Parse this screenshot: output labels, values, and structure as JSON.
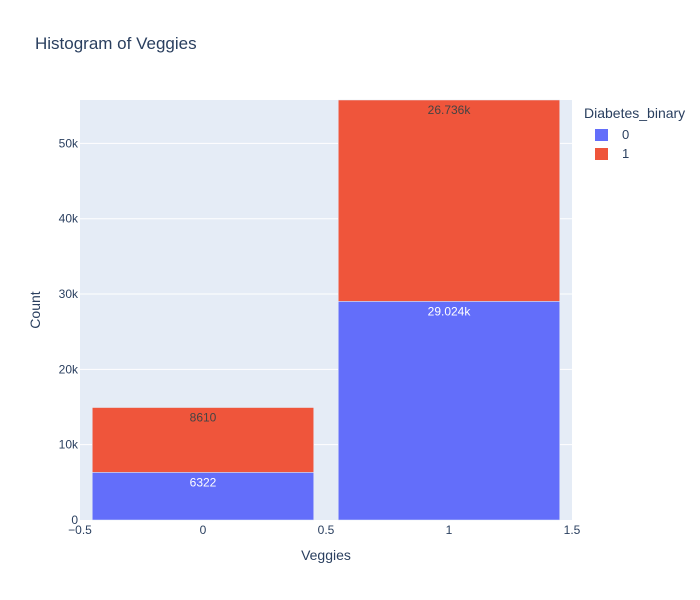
{
  "chart_data": {
    "type": "bar",
    "title": "Histogram of Veggies",
    "xlabel": "Veggies",
    "ylabel": "Count",
    "categories": [
      "0",
      "1"
    ],
    "x_values": [
      0,
      1
    ],
    "xlim": [
      -0.5,
      1.5
    ],
    "ylim": [
      0,
      55760
    ],
    "barmode": "stack",
    "x_ticks": [
      "−0.5",
      "0",
      "0.5",
      "1",
      "1.5"
    ],
    "x_tick_values": [
      -0.5,
      0,
      0.5,
      1,
      1.5
    ],
    "y_ticks": [
      "0",
      "10k",
      "20k",
      "30k",
      "40k",
      "50k"
    ],
    "y_tick_values": [
      0,
      10000,
      20000,
      30000,
      40000,
      50000
    ],
    "legend_title": "Diabetes_binary",
    "legend_position": "top-right",
    "grid": true,
    "series": [
      {
        "name": "0",
        "color": "#636efa",
        "values": [
          6322,
          29024
        ],
        "labels": [
          "6322",
          "29.024k"
        ]
      },
      {
        "name": "1",
        "color": "#ef553b",
        "values": [
          8610,
          26736
        ],
        "labels": [
          "8610",
          "26.736k"
        ]
      }
    ]
  }
}
